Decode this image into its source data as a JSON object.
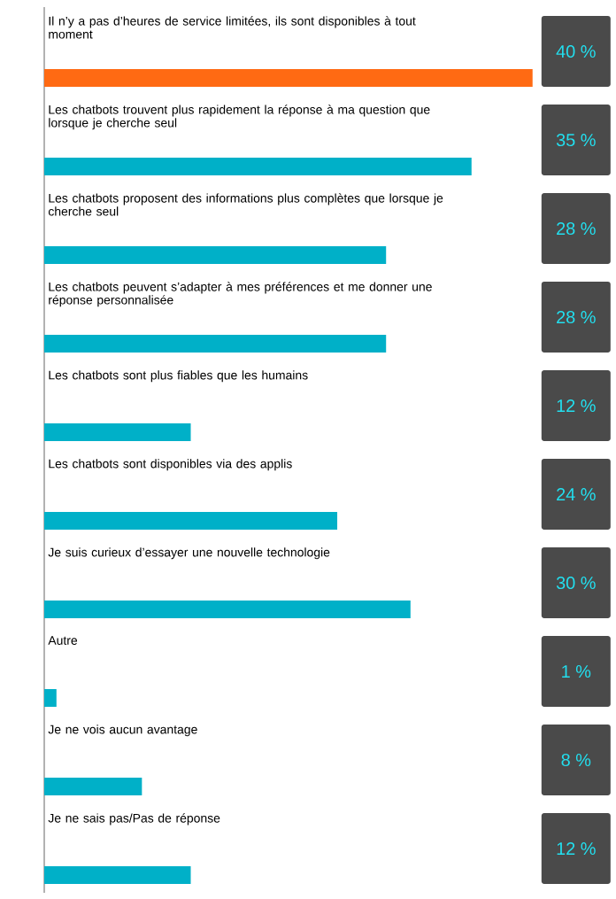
{
  "chart_data": {
    "type": "bar",
    "orientation": "horizontal",
    "tick_labels": false,
    "categories": [
      "Il n’y a pas d’heures de service limitées, ils sont disponibles à tout moment",
      "Les chatbots trouvent plus rapidement la réponse à ma question que lorsque je cherche seul",
      "Les chatbots proposent des informations plus complètes que lorsque je cherche seul",
      "Les chatbots peuvent s’adapter à mes préférences et me donner une réponse personnalisée",
      "Les chatbots sont plus fiables que les humains",
      "Les chatbots sont disponibles via des applis",
      "Je suis curieux d’essayer une nouvelle technologie",
      "Autre",
      "Je ne vois aucun avantage",
      "Je ne sais pas/Pas de réponse"
    ],
    "values": [
      40,
      35,
      28,
      28,
      12,
      24,
      30,
      1,
      8,
      12
    ],
    "value_labels": [
      "40 %",
      "35 %",
      "28 %",
      "28 %",
      "12 %",
      "24 %",
      "30 %",
      "1 %",
      "8 %",
      "12 %"
    ],
    "colors": [
      "#ff6a13",
      "#00b0c8",
      "#00b0c8",
      "#00b0c8",
      "#00b0c8",
      "#00b0c8",
      "#00b0c8",
      "#00b0c8",
      "#00b0c8",
      "#00b0c8"
    ]
  }
}
